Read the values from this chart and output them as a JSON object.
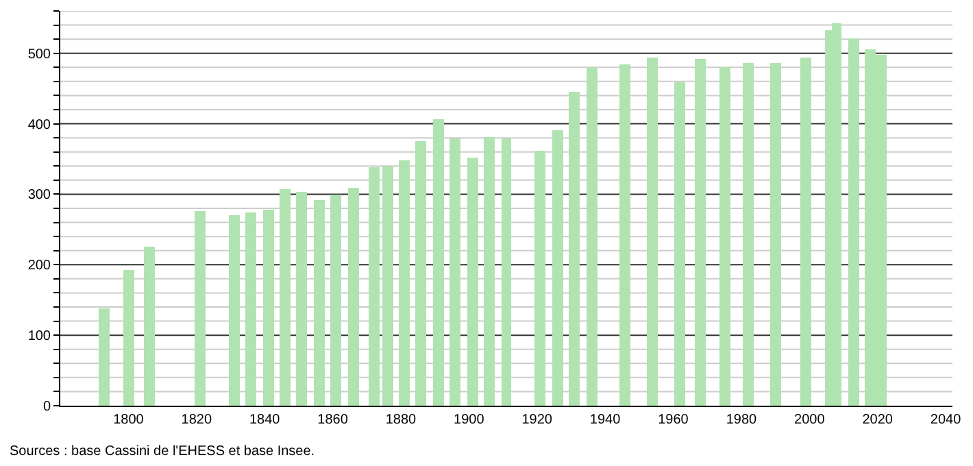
{
  "chart_data": {
    "type": "bar",
    "x": [
      1793,
      1800,
      1806,
      1821,
      1831,
      1836,
      1841,
      1846,
      1851,
      1856,
      1861,
      1866,
      1872,
      1876,
      1881,
      1886,
      1891,
      1896,
      1901,
      1906,
      1911,
      1921,
      1926,
      1931,
      1936,
      1946,
      1954,
      1962,
      1968,
      1975,
      1982,
      1990,
      1999,
      2006,
      2008,
      2013,
      2018,
      2021
    ],
    "values": [
      139,
      192,
      225,
      276,
      270,
      274,
      278,
      307,
      303,
      291,
      300,
      310,
      338,
      341,
      349,
      375,
      407,
      380,
      351,
      382,
      380,
      362,
      391,
      446,
      481,
      484,
      494,
      458,
      491,
      481,
      486,
      486,
      494,
      532,
      543,
      521,
      506,
      497
    ],
    "color": "#b0e3b0",
    "xlim": [
      1780,
      2042
    ],
    "xticks": [
      1800,
      1820,
      1840,
      1860,
      1880,
      1900,
      1920,
      1940,
      1960,
      1980,
      2000,
      2020,
      2040
    ],
    "ylim": [
      0,
      560
    ],
    "yticks": [
      0,
      {
        "value": 20,
        "label": null
      },
      {
        "value": 40,
        "label": null
      },
      {
        "value": 60,
        "label": null
      },
      {
        "value": 80,
        "label": null
      },
      100,
      {
        "value": 120,
        "label": null
      },
      {
        "value": 140,
        "label": null
      },
      {
        "value": 160,
        "label": null
      },
      {
        "value": 180,
        "label": null
      },
      200,
      {
        "value": 220,
        "label": null
      },
      {
        "value": 240,
        "label": null
      },
      {
        "value": 260,
        "label": null
      },
      {
        "value": 280,
        "label": null
      },
      300,
      {
        "value": 320,
        "label": null
      },
      {
        "value": 340,
        "label": null
      },
      {
        "value": 360,
        "label": null
      },
      {
        "value": 380,
        "label": null
      },
      400,
      {
        "value": 420,
        "label": null
      },
      {
        "value": 440,
        "label": null
      },
      {
        "value": 460,
        "label": null
      },
      {
        "value": 480,
        "label": null
      },
      500,
      {
        "value": 520,
        "label": null
      },
      {
        "value": 540,
        "label": null
      },
      {
        "value": 560,
        "label": null
      }
    ],
    "grid": "y",
    "annotations": [
      "Sources : base Cassini de l'EHESS et base Insee."
    ]
  }
}
